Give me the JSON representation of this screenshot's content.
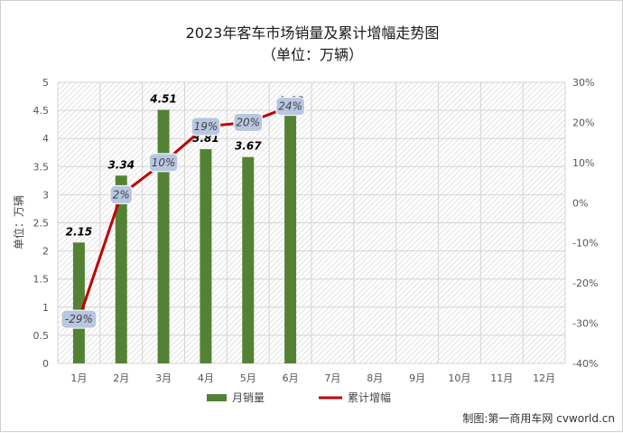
{
  "chart_data": {
    "type": "bar",
    "title": "2023年客车市场销量及累计增幅走势图",
    "subtitle": "（单位：万辆）",
    "ylabel": "单位：万辆",
    "categories": [
      "1月",
      "2月",
      "3月",
      "4月",
      "5月",
      "6月",
      "7月",
      "8月",
      "9月",
      "10月",
      "11月",
      "12月"
    ],
    "series": [
      {
        "name": "月销量",
        "type": "bar",
        "axis": "left",
        "color": "#548235",
        "values": [
          2.15,
          3.34,
          4.51,
          3.81,
          3.67,
          4.48,
          null,
          null,
          null,
          null,
          null,
          null
        ]
      },
      {
        "name": "累计增幅",
        "type": "line",
        "axis": "right",
        "color": "#c00000",
        "values": [
          -29,
          2,
          10,
          19,
          20,
          24,
          null,
          null,
          null,
          null,
          null,
          null
        ]
      }
    ],
    "bar_labels": [
      "2.15",
      "3.34",
      "4.51",
      "3.81",
      "3.67",
      "4.48"
    ],
    "line_labels": [
      "-29%",
      "2%",
      "10%",
      "19%",
      "20%",
      "24%"
    ],
    "ylim_left": [
      0,
      5
    ],
    "yticks_left": [
      "0",
      "0.5",
      "1",
      "1.5",
      "2",
      "2.5",
      "3",
      "3.5",
      "4",
      "4.5",
      "5"
    ],
    "ylim_right": [
      -40,
      30
    ],
    "yticks_right": [
      "-40%",
      "-30%",
      "-20%",
      "-10%",
      "0%",
      "10%",
      "20%",
      "30%"
    ],
    "grid": true,
    "legend_position": "bottom"
  },
  "credit": "制图:第一商用车网 cvworld.cn"
}
